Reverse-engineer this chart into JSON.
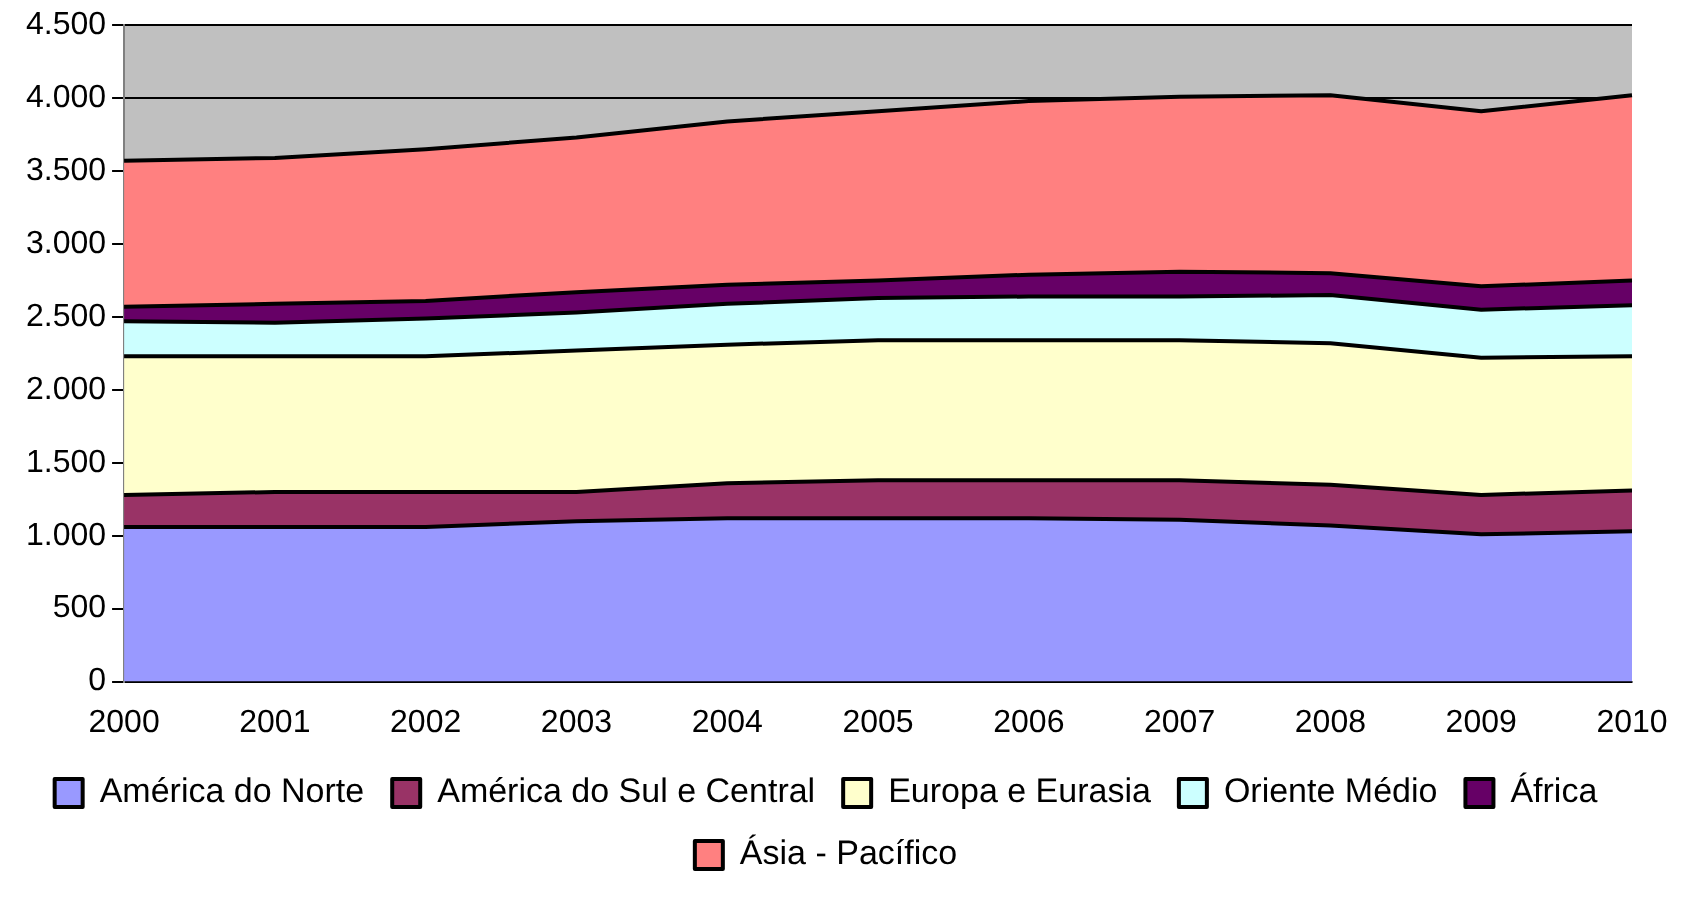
{
  "chart_data": {
    "type": "area",
    "stacked": true,
    "categories": [
      "2000",
      "2001",
      "2002",
      "2003",
      "2004",
      "2005",
      "2006",
      "2007",
      "2008",
      "2009",
      "2010"
    ],
    "series": [
      {
        "name": "América do Norte",
        "color": "#9999ff",
        "values": [
          1060,
          1060,
          1060,
          1100,
          1120,
          1120,
          1120,
          1110,
          1070,
          1010,
          1030
        ]
      },
      {
        "name": "América do Sul e Central",
        "color": "#993366",
        "values": [
          220,
          240,
          240,
          200,
          240,
          260,
          260,
          270,
          280,
          270,
          280
        ]
      },
      {
        "name": "Europa e Eurasia",
        "color": "#ffffcc",
        "values": [
          950,
          930,
          930,
          970,
          950,
          960,
          960,
          960,
          970,
          940,
          920
        ]
      },
      {
        "name": "Oriente Médio",
        "color": "#ccffff",
        "values": [
          240,
          230,
          260,
          260,
          280,
          290,
          300,
          300,
          330,
          330,
          350
        ]
      },
      {
        "name": "África",
        "color": "#660066",
        "values": [
          100,
          130,
          120,
          140,
          130,
          120,
          150,
          170,
          150,
          160,
          170
        ]
      },
      {
        "name": "Ásia - Pacífico",
        "color": "#ff8080",
        "values": [
          1000,
          1000,
          1040,
          1060,
          1120,
          1160,
          1190,
          1200,
          1220,
          1200,
          1270
        ]
      }
    ],
    "ylim": [
      0,
      4500
    ],
    "yticks": [
      {
        "value": 0,
        "label": "0"
      },
      {
        "value": 500,
        "label": "500"
      },
      {
        "value": 1000,
        "label": "1.000"
      },
      {
        "value": 1500,
        "label": "1.500"
      },
      {
        "value": 2000,
        "label": "2.000"
      },
      {
        "value": 2500,
        "label": "2.500"
      },
      {
        "value": 3000,
        "label": "3.000"
      },
      {
        "value": 3500,
        "label": "3.500"
      },
      {
        "value": 4000,
        "label": "4.000"
      },
      {
        "value": 4500,
        "label": "4.500"
      }
    ],
    "grid": "y",
    "legend": "bottom"
  }
}
